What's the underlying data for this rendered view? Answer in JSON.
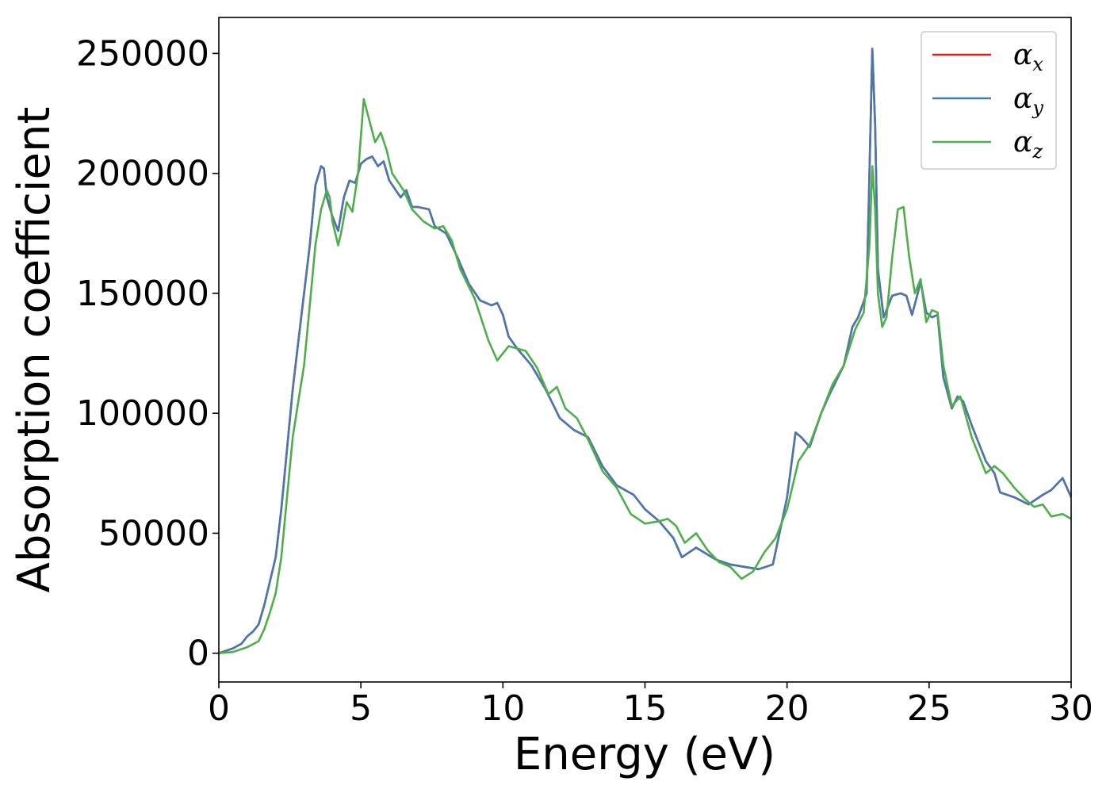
{
  "chart_data": {
    "type": "line",
    "xlabel": "Energy (eV)",
    "ylabel": "Absorption coefficient",
    "xlim": [
      0,
      30
    ],
    "ylim": [
      -12000,
      265000
    ],
    "xticks": [
      0,
      5,
      10,
      15,
      20,
      25,
      30
    ],
    "xtick_labels": [
      "0",
      "5",
      "10",
      "15",
      "20",
      "25",
      "30"
    ],
    "yticks": [
      0,
      50000,
      100000,
      150000,
      200000,
      250000
    ],
    "ytick_labels": [
      "0",
      "50000",
      "100000",
      "150000",
      "200000",
      "250000"
    ],
    "grid": false,
    "legend_position": "top-right",
    "series": [
      {
        "name": "α_x",
        "label_main": "α",
        "label_sub": "x",
        "color": "#e41a1c",
        "x": [
          0,
          0.5,
          0.8,
          1.0,
          1.2,
          1.4,
          1.6,
          1.8,
          2.0,
          2.2,
          2.4,
          2.6,
          2.8,
          3.0,
          3.2,
          3.4,
          3.6,
          3.7,
          3.8,
          4.0,
          4.2,
          4.4,
          4.6,
          4.8,
          5.0,
          5.2,
          5.4,
          5.6,
          5.8,
          6.0,
          6.4,
          6.6,
          6.8,
          7.0,
          7.4,
          7.6,
          8.0,
          8.4,
          8.8,
          9.2,
          9.6,
          9.8,
          10.0,
          10.2,
          10.5,
          11.0,
          11.5,
          12.0,
          12.5,
          13.0,
          13.5,
          14.0,
          14.3,
          14.6,
          15.0,
          15.5,
          16.0,
          16.3,
          16.8,
          17.5,
          18.0,
          18.5,
          19.0,
          19.5,
          20.0,
          20.3,
          20.5,
          20.8,
          21.2,
          21.5,
          22.0,
          22.3,
          22.5,
          22.8,
          22.9,
          23.0,
          23.1,
          23.2,
          23.4,
          23.7,
          24.0,
          24.2,
          24.4,
          24.6,
          24.7,
          24.9,
          25.1,
          25.3,
          25.5,
          25.8,
          26.0,
          26.2,
          26.5,
          27.0,
          27.3,
          27.5,
          28.0,
          28.5,
          29.0,
          29.3,
          29.7,
          30.0
        ],
        "y": [
          0,
          2000,
          4000,
          7000,
          9000,
          12000,
          20000,
          30000,
          40000,
          60000,
          85000,
          110000,
          130000,
          150000,
          170000,
          195000,
          203000,
          202000,
          190000,
          182000,
          176000,
          190000,
          197000,
          196000,
          204000,
          206000,
          207000,
          203000,
          205000,
          197000,
          190000,
          193000,
          186000,
          186000,
          185000,
          178000,
          175000,
          165000,
          154000,
          147000,
          145000,
          146000,
          141000,
          132000,
          127000,
          120000,
          110000,
          98000,
          93000,
          90000,
          78000,
          70000,
          68000,
          66000,
          60000,
          55000,
          48000,
          40000,
          44000,
          39000,
          37000,
          36000,
          35000,
          37000,
          65000,
          92000,
          90000,
          86000,
          100000,
          108000,
          120000,
          136000,
          140000,
          150000,
          200000,
          252000,
          220000,
          160000,
          140000,
          149000,
          150000,
          149000,
          141000,
          150000,
          155000,
          142000,
          140000,
          141000,
          115000,
          102000,
          107000,
          105000,
          95000,
          80000,
          75000,
          67000,
          65000,
          62000,
          66000,
          68000,
          73000,
          65000
        ]
      },
      {
        "name": "α_y",
        "label_main": "α",
        "label_sub": "y",
        "color": "#4878b0",
        "x": [
          0,
          0.5,
          0.8,
          1.0,
          1.2,
          1.4,
          1.6,
          1.8,
          2.0,
          2.2,
          2.4,
          2.6,
          2.8,
          3.0,
          3.2,
          3.4,
          3.6,
          3.7,
          3.8,
          4.0,
          4.2,
          4.4,
          4.6,
          4.8,
          5.0,
          5.2,
          5.4,
          5.6,
          5.8,
          6.0,
          6.4,
          6.6,
          6.8,
          7.0,
          7.4,
          7.6,
          8.0,
          8.4,
          8.8,
          9.2,
          9.6,
          9.8,
          10.0,
          10.2,
          10.5,
          11.0,
          11.5,
          12.0,
          12.5,
          13.0,
          13.5,
          14.0,
          14.3,
          14.6,
          15.0,
          15.5,
          16.0,
          16.3,
          16.8,
          17.5,
          18.0,
          18.5,
          19.0,
          19.5,
          20.0,
          20.3,
          20.5,
          20.8,
          21.2,
          21.5,
          22.0,
          22.3,
          22.5,
          22.8,
          22.9,
          23.0,
          23.1,
          23.2,
          23.4,
          23.7,
          24.0,
          24.2,
          24.4,
          24.6,
          24.7,
          24.9,
          25.1,
          25.3,
          25.5,
          25.8,
          26.0,
          26.2,
          26.5,
          27.0,
          27.3,
          27.5,
          28.0,
          28.5,
          29.0,
          29.3,
          29.7,
          30.0
        ],
        "y": [
          0,
          2000,
          4000,
          7000,
          9000,
          12000,
          20000,
          30000,
          40000,
          60000,
          85000,
          110000,
          130000,
          150000,
          170000,
          195000,
          203000,
          202000,
          190000,
          182000,
          176000,
          190000,
          197000,
          196000,
          204000,
          206000,
          207000,
          203000,
          205000,
          197000,
          190000,
          193000,
          186000,
          186000,
          185000,
          178000,
          175000,
          165000,
          154000,
          147000,
          145000,
          146000,
          141000,
          132000,
          127000,
          120000,
          110000,
          98000,
          93000,
          90000,
          78000,
          70000,
          68000,
          66000,
          60000,
          55000,
          48000,
          40000,
          44000,
          39000,
          37000,
          36000,
          35000,
          37000,
          65000,
          92000,
          90000,
          86000,
          100000,
          108000,
          120000,
          136000,
          140000,
          150000,
          200000,
          252000,
          220000,
          160000,
          140000,
          149000,
          150000,
          149000,
          141000,
          150000,
          155000,
          142000,
          140000,
          141000,
          115000,
          102000,
          107000,
          105000,
          95000,
          80000,
          75000,
          67000,
          65000,
          62000,
          66000,
          68000,
          73000,
          65000
        ]
      },
      {
        "name": "α_z",
        "label_main": "α",
        "label_sub": "z",
        "color": "#4daf4a",
        "x": [
          0,
          0.5,
          1.0,
          1.4,
          1.6,
          1.8,
          2.0,
          2.2,
          2.4,
          2.6,
          2.8,
          3.0,
          3.2,
          3.4,
          3.6,
          3.8,
          3.9,
          4.0,
          4.2,
          4.3,
          4.5,
          4.7,
          4.9,
          5.1,
          5.3,
          5.5,
          5.7,
          5.9,
          6.1,
          6.5,
          6.8,
          7.2,
          7.6,
          7.9,
          8.2,
          8.5,
          9.0,
          9.5,
          9.8,
          10.2,
          10.8,
          11.2,
          11.6,
          11.9,
          12.2,
          12.6,
          13.0,
          13.5,
          14.0,
          14.5,
          15.0,
          15.5,
          15.8,
          16.1,
          16.4,
          16.8,
          17.2,
          17.6,
          18.0,
          18.4,
          18.8,
          19.2,
          19.6,
          20.0,
          20.4,
          20.8,
          21.2,
          21.6,
          22.0,
          22.4,
          22.7,
          22.9,
          23.0,
          23.1,
          23.2,
          23.35,
          23.5,
          23.7,
          23.9,
          24.1,
          24.3,
          24.5,
          24.7,
          24.9,
          25.1,
          25.3,
          25.5,
          25.8,
          26.1,
          26.5,
          27.0,
          27.3,
          27.6,
          28.0,
          28.4,
          28.7,
          29.0,
          29.3,
          29.7,
          30.0
        ],
        "y": [
          0,
          500,
          2500,
          5000,
          10000,
          17000,
          25000,
          40000,
          65000,
          90000,
          105000,
          120000,
          145000,
          170000,
          185000,
          193000,
          190000,
          180000,
          170000,
          175000,
          188000,
          184000,
          200000,
          231000,
          222000,
          213000,
          217000,
          210000,
          200000,
          193000,
          185000,
          180000,
          177000,
          178000,
          172000,
          160000,
          148000,
          130000,
          122000,
          128000,
          126000,
          119000,
          108000,
          111000,
          102000,
          98000,
          89000,
          76000,
          69000,
          58000,
          54000,
          55000,
          56000,
          53000,
          46000,
          50000,
          43000,
          38000,
          36000,
          31000,
          34000,
          42000,
          48000,
          60000,
          80000,
          87000,
          100000,
          112000,
          120000,
          135000,
          142000,
          170000,
          203000,
          185000,
          150000,
          136000,
          140000,
          165000,
          185000,
          186000,
          165000,
          150000,
          156000,
          138000,
          143000,
          142000,
          120000,
          103000,
          107000,
          90000,
          75000,
          78000,
          75000,
          69000,
          64000,
          61000,
          62000,
          57000,
          58000,
          56000
        ]
      }
    ]
  }
}
